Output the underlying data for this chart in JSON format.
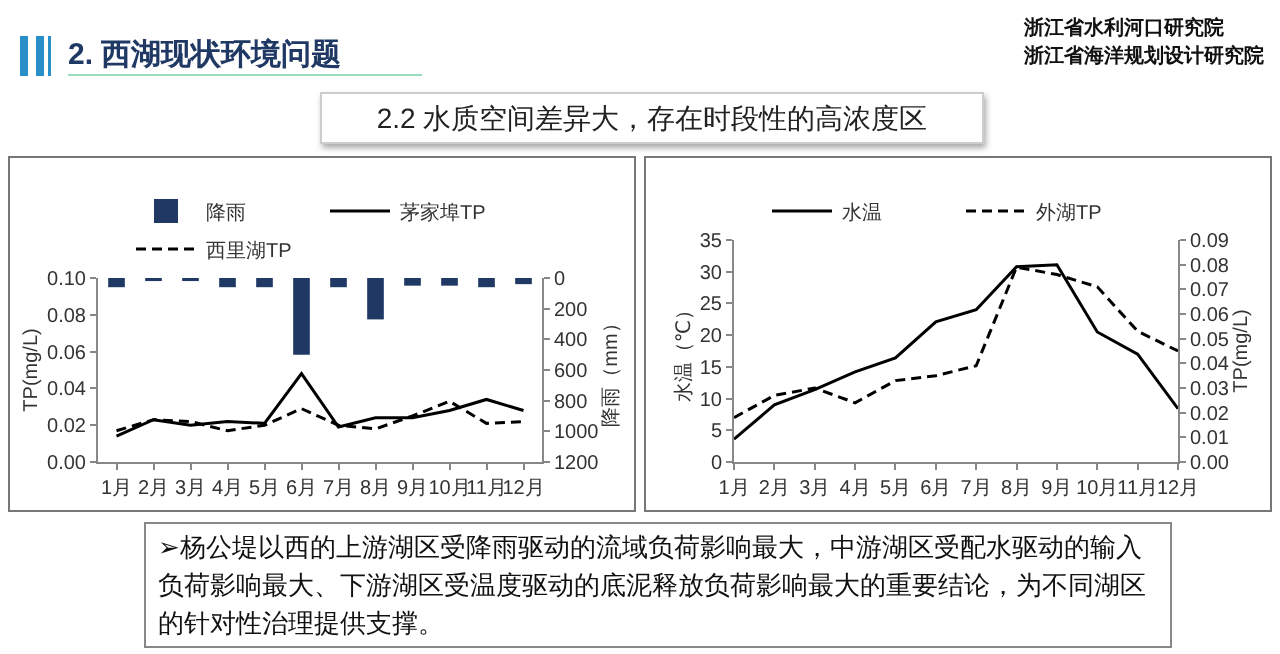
{
  "chart_data": [
    {
      "type": "line",
      "title": "2. 西湖现状环境问题",
      "annotations": [
        "浙江省水利河口研究院",
        "浙江省海洋规划设计研究院",
        "2.2 水质空间差异大，存在时段性的高浓度区",
        "➢杨公堤以西的上游湖区受降雨驱动的流域负荷影响最大，中游湖区受配水驱动的输入负荷影响最大、下游湖区受温度驱动的底泥释放负荷影响最大的重要结论，为不同湖区的针对性治理提供支撑。"
      ],
      "categories": [
        "1月",
        "2月",
        "3月",
        "4月",
        "5月",
        "6月",
        "7月",
        "8月",
        "9月",
        "10月",
        "11月",
        "12月"
      ],
      "series": [
        {
          "name": "降雨",
          "type": "bar",
          "axis": "y2",
          "color": "#1f3864",
          "values": [
            60,
            20,
            20,
            60,
            60,
            500,
            60,
            270,
            50,
            50,
            60,
            40
          ]
        },
        {
          "name": "茅家埠TP",
          "color": "#000000",
          "line_style": "solid",
          "values": [
            0.014,
            0.023,
            0.02,
            0.022,
            0.021,
            0.048,
            0.019,
            0.024,
            0.024,
            0.028,
            0.034,
            0.028
          ]
        },
        {
          "name": "西里湖TP",
          "color": "#000000",
          "line_style": "dashed",
          "values": [
            0.017,
            0.023,
            0.022,
            0.017,
            0.02,
            0.029,
            0.02,
            0.018,
            0.025,
            0.033,
            0.021,
            0.022
          ]
        }
      ],
      "ylabel": "TP(mg/L)",
      "y2label": "降雨（mm）",
      "ylim": [
        0,
        0.1
      ],
      "yticks": [
        {
          "value": 0,
          "label": "0.00"
        },
        {
          "value": 0.02,
          "label": "0.02"
        },
        {
          "value": 0.04,
          "label": "0.04"
        },
        {
          "value": 0.06,
          "label": "0.06"
        },
        {
          "value": 0.08,
          "label": "0.08"
        },
        {
          "value": 0.1,
          "label": "0.10"
        }
      ],
      "y2lim": [
        1200,
        0
      ],
      "y2ticks": [
        0,
        200,
        400,
        600,
        800,
        1000,
        1200
      ],
      "legend": "top",
      "marker": "none"
    },
    {
      "type": "line",
      "categories": [
        "1月",
        "2月",
        "3月",
        "4月",
        "5月",
        "6月",
        "7月",
        "8月",
        "9月",
        "10月",
        "11月",
        "12月"
      ],
      "series": [
        {
          "name": "水温",
          "color": "#000000",
          "line_style": "solid",
          "values": [
            3.6,
            9,
            11.4,
            14.2,
            16.4,
            22.1,
            24,
            30.8,
            31.1,
            20.5,
            17,
            8.4
          ]
        },
        {
          "name": "外湖TP",
          "axis": "y2",
          "color": "#000000",
          "line_style": "dashed",
          "values": [
            0.018,
            0.027,
            0.03,
            0.024,
            0.033,
            0.035,
            0.039,
            0.079,
            0.076,
            0.071,
            0.053,
            0.045
          ]
        }
      ],
      "ylabel": "水温（℃）",
      "y2label": "TP(mg/L)",
      "ylim": [
        0,
        35
      ],
      "yticks": [
        0,
        5,
        10,
        15,
        20,
        25,
        30,
        35
      ],
      "y2lim": [
        0,
        0.09
      ],
      "y2ticks": [
        {
          "value": 0,
          "label": "0.00"
        },
        {
          "value": 0.01,
          "label": "0.01"
        },
        {
          "value": 0.02,
          "label": "0.02"
        },
        {
          "value": 0.03,
          "label": "0.03"
        },
        {
          "value": 0.04,
          "label": "0.04"
        },
        {
          "value": 0.05,
          "label": "0.05"
        },
        {
          "value": 0.06,
          "label": "0.06"
        },
        {
          "value": 0.07,
          "label": "0.07"
        },
        {
          "value": 0.08,
          "label": "0.08"
        },
        {
          "value": 0.09,
          "label": "0.09"
        }
      ],
      "legend": "top",
      "marker": "none"
    }
  ]
}
